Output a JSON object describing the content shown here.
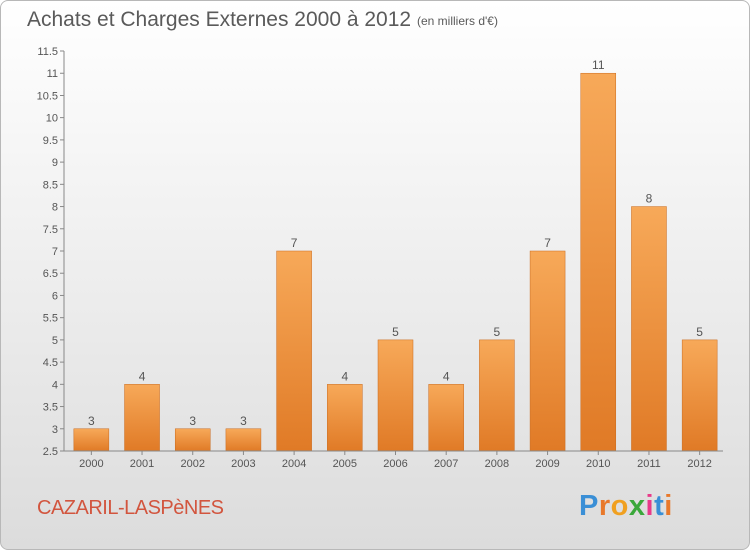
{
  "title": "Achats et Charges Externes 2000 à 2012",
  "subtitle": "(en milliers d'€)",
  "commune": "CAZARIL-LASPèNES",
  "logo": {
    "text": "Proxiti",
    "letter_colors": [
      "#3a8fd6",
      "#e8782a",
      "#f0a020",
      "#3aa83a",
      "#e83a8a",
      "#3a8fd6",
      "#e8782a"
    ]
  },
  "colors": {
    "bar_light": "#f7a959",
    "bar_dark": "#e07a26",
    "axis": "#888888",
    "text": "#555555"
  },
  "chart_data": {
    "type": "bar",
    "categories": [
      "2000",
      "2001",
      "2002",
      "2003",
      "2004",
      "2005",
      "2006",
      "2007",
      "2008",
      "2009",
      "2010",
      "2011",
      "2012"
    ],
    "values": [
      3,
      4,
      3,
      3,
      7,
      4,
      5,
      4,
      5,
      7,
      11,
      8,
      5
    ],
    "value_labels": [
      "3",
      "4",
      "3",
      "3",
      "7",
      "4",
      "5",
      "4",
      "5",
      "7",
      "11",
      "8",
      "5"
    ],
    "ylim": [
      2.5,
      11.5
    ],
    "yticks": [
      "2.5",
      "3",
      "3.5",
      "4",
      "4.5",
      "5",
      "5.5",
      "6",
      "6.5",
      "7",
      "7.5",
      "8",
      "8.5",
      "9",
      "9.5",
      "10",
      "10.5",
      "11",
      "11.5"
    ],
    "title": "Achats et Charges Externes 2000 à 2012",
    "xlabel": "",
    "ylabel": "",
    "grid": false,
    "legend": "none"
  }
}
